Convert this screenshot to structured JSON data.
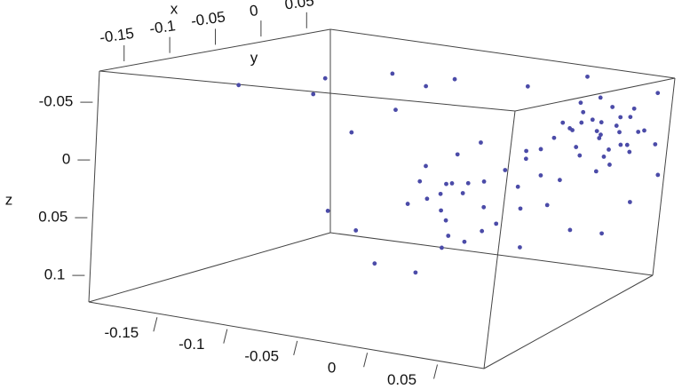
{
  "chart_data": {
    "type": "scatter3d",
    "x_label": "x",
    "y_label": "y",
    "z_label": "z",
    "color": "#4b4ba8",
    "xlim": [
      -0.177,
      0.076
    ],
    "ylim": [
      -0.2,
      0.082
    ],
    "zlim": [
      -0.077,
      0.123
    ],
    "xticks": [
      -0.15,
      -0.1,
      -0.05,
      0,
      0.05
    ],
    "yticks": [
      -0.15,
      -0.1,
      -0.05,
      0,
      0.05
    ],
    "zticks": [
      -0.05,
      0,
      0.05,
      0.1
    ],
    "x": [
      0.05,
      0.06,
      0.04,
      0.055,
      0.045,
      0.065,
      0.035,
      0.05,
      0.03,
      0.06,
      0.04,
      0.055,
      0.07,
      0.025,
      0.045,
      0.05,
      0.06,
      0.035,
      0.065,
      0.04,
      0.03,
      0.055,
      0.05,
      0.045,
      0.06,
      0.02,
      0.07,
      0.035,
      0.05,
      0.04,
      -0.03,
      -0.02,
      -0.04,
      -0.01,
      -0.05,
      -0.025,
      0.0,
      -0.035,
      -0.015,
      -0.045,
      0.01,
      -0.02,
      -0.06,
      -0.03,
      0.0,
      -0.01,
      -0.04,
      -0.05,
      0.005,
      -0.025,
      0.01,
      -0.015,
      -0.055,
      0.015,
      -0.035,
      0.0,
      -0.02,
      -0.045,
      0.02,
      -0.01,
      -0.1,
      -0.08,
      -0.06,
      -0.03,
      0.0,
      -0.07,
      -0.05,
      0.02,
      -0.08,
      0.03,
      0.07,
      -0.02,
      0.06,
      -0.04,
      0.04,
      -0.1,
      0.075,
      -0.06,
      0.0,
      0.03
    ],
    "y": [
      0.04,
      0.05,
      0.03,
      0.06,
      0.02,
      0.055,
      0.045,
      0.065,
      0.02,
      0.035,
      0.05,
      0.045,
      0.06,
      0.035,
      0.055,
      0.025,
      0.07,
      0.03,
      0.04,
      0.06,
      0.05,
      0.03,
      0.05,
      0.04,
      0.06,
      0.04,
      0.075,
      0.065,
      0.015,
      0.045,
      -0.02,
      -0.01,
      -0.03,
      0.0,
      -0.02,
      -0.04,
      0.01,
      0.0,
      -0.025,
      -0.045,
      0.0,
      0.02,
      -0.03,
      -0.05,
      -0.02,
      0.015,
      -0.01,
      -0.05,
      0.02,
      0.005,
      0.025,
      -0.035,
      -0.015,
      0.03,
      -0.03,
      0.03,
      -0.015,
      -0.02,
      0.01,
      -0.045,
      -0.15,
      -0.1,
      -0.12,
      -0.08,
      -0.05,
      -0.06,
      -0.04,
      0.0,
      -0.07,
      0.06,
      0.08,
      -0.06,
      0.02,
      -0.07,
      0.075,
      -0.08,
      0.07,
      -0.09,
      0.05,
      -0.01
    ],
    "z": [
      -0.03,
      -0.02,
      -0.04,
      -0.01,
      -0.02,
      -0.035,
      -0.025,
      -0.005,
      -0.03,
      -0.015,
      0.0,
      -0.045,
      -0.02,
      -0.01,
      -0.03,
      0.005,
      -0.025,
      -0.05,
      0.0,
      -0.04,
      -0.02,
      -0.03,
      0.01,
      -0.055,
      -0.045,
      -0.035,
      -0.01,
      -0.015,
      -0.02,
      0.015,
      0.03,
      0.02,
      0.045,
      0.01,
      0.05,
      0.035,
      0.0,
      0.06,
      0.025,
      0.02,
      0.03,
      0.04,
      0.03,
      0.01,
      0.05,
      -0.01,
      0.07,
      0.04,
      0.015,
      0.055,
      -0.02,
      0.0,
      0.015,
      0.02,
      0.08,
      0.04,
      -0.015,
      0.065,
      -0.005,
      0.03,
      -0.06,
      -0.07,
      -0.05,
      -0.07,
      -0.065,
      0.09,
      0.1,
      0.09,
      0.06,
      0.07,
      0.02,
      -0.06,
      -0.07,
      -0.04,
      0.04,
      0.04,
      -0.06,
      -0.02,
      0.06,
      -0.06
    ]
  }
}
